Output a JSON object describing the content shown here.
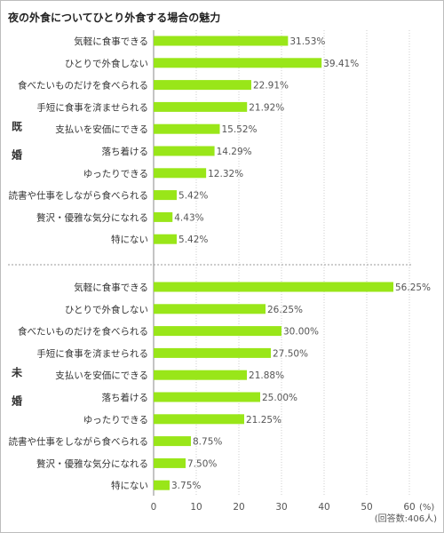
{
  "chart_data": {
    "type": "bar",
    "orientation": "horizontal",
    "title": "夜の外食についてひとり外食する場合の魅力",
    "unit": "(%)",
    "note": "(回答数:406人)",
    "xlim": [
      0,
      60
    ],
    "xticks": [
      0,
      10,
      20,
      30,
      40,
      50,
      60
    ],
    "bar_color": "#99e619",
    "groups": [
      {
        "name": "既婚",
        "categories": [
          "気軽に食事できる",
          "ひとりで外食しない",
          "食べたいものだけを食べられる",
          "手短に食事を済ませられる",
          "支払いを安価にできる",
          "落ち着ける",
          "ゆったりできる",
          "読書や仕事をしながら食べられる",
          "贅沢・優雅な気分になれる",
          "特にない"
        ],
        "values": [
          31.53,
          39.41,
          22.91,
          21.92,
          15.52,
          14.29,
          12.32,
          5.42,
          4.43,
          5.42
        ],
        "labels": [
          "31.53%",
          "39.41%",
          "22.91%",
          "21.92%",
          "15.52%",
          "14.29%",
          "12.32%",
          "5.42%",
          "4.43%",
          "5.42%"
        ]
      },
      {
        "name": "未婚",
        "categories": [
          "気軽に食事できる",
          "ひとりで外食しない",
          "食べたいものだけを食べられる",
          "手短に食事を済ませられる",
          "支払いを安価にできる",
          "落ち着ける",
          "ゆったりできる",
          "読書や仕事をしながら食べられる",
          "贅沢・優雅な気分になれる",
          "特にない"
        ],
        "values": [
          56.25,
          26.25,
          30.0,
          27.5,
          21.88,
          25.0,
          21.25,
          8.75,
          7.5,
          3.75
        ],
        "labels": [
          "56.25%",
          "26.25%",
          "30.00%",
          "27.50%",
          "21.88%",
          "25.00%",
          "21.25%",
          "8.75%",
          "7.50%",
          "3.75%"
        ]
      }
    ]
  }
}
